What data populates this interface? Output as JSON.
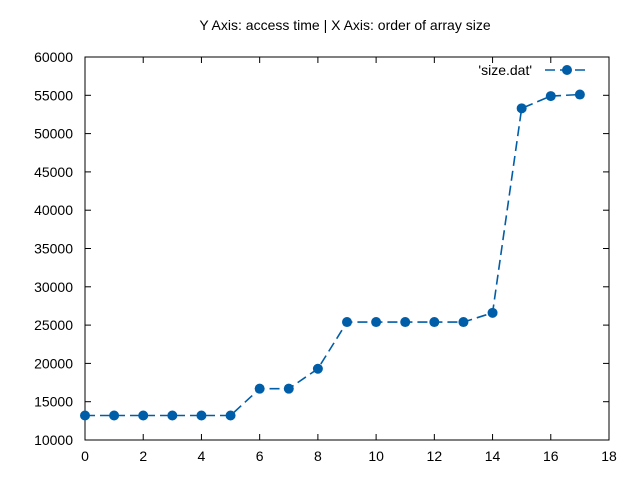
{
  "chart_data": {
    "type": "line",
    "title": "Y Axis: access time | X Axis: order of array size",
    "xlabel": "",
    "ylabel": "",
    "xlim": [
      0,
      18
    ],
    "ylim": [
      10000,
      60000
    ],
    "x_ticks": [
      0,
      2,
      4,
      6,
      8,
      10,
      12,
      14,
      16,
      18
    ],
    "y_ticks": [
      10000,
      15000,
      20000,
      25000,
      30000,
      35000,
      40000,
      45000,
      50000,
      55000,
      60000
    ],
    "grid": false,
    "legend_position": "top-right",
    "series": [
      {
        "name": "'size.dat'",
        "color": "#005ea8",
        "line_style": "dashed",
        "marker": "circle",
        "x": [
          0,
          1,
          2,
          3,
          4,
          5,
          6,
          7,
          8,
          9,
          10,
          11,
          12,
          13,
          14,
          15,
          16,
          17
        ],
        "y": [
          13200,
          13200,
          13200,
          13200,
          13200,
          13200,
          16700,
          16700,
          19300,
          25400,
          25400,
          25400,
          25400,
          25400,
          26600,
          53300,
          54900,
          55100
        ]
      }
    ]
  }
}
